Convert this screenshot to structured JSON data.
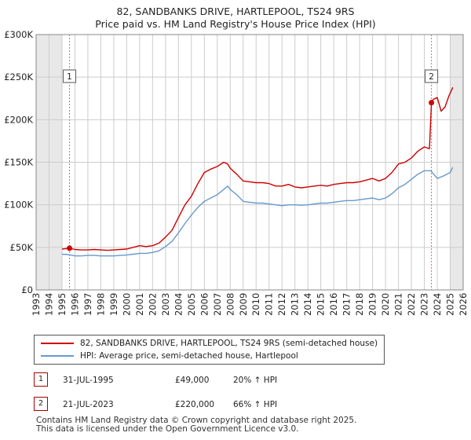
{
  "title_line1": "82, SANDBANKS DRIVE, HARTLEPOOL, TS24 9RS",
  "title_line2": "Price paid vs. HM Land Registry's House Price Index (HPI)",
  "colors": {
    "property": "#cc0000",
    "hpi": "#6699cc",
    "grid": "#cccccc",
    "shade": "#e8e8e8",
    "marker_line": "#e06666"
  },
  "legend": {
    "property_label": "82, SANDBANKS DRIVE, HARTLEPOOL, TS24 9RS (semi-detached house)",
    "hpi_label": "HPI: Average price, semi-detached house, Hartlepool"
  },
  "transactions": [
    {
      "badge": "1",
      "date": "31-JUL-1995",
      "price": "£49,000",
      "hpi": "20% ↑ HPI"
    },
    {
      "badge": "2",
      "date": "21-JUL-2023",
      "price": "£220,000",
      "hpi": "66% ↑ HPI"
    }
  ],
  "footer_line1": "Contains HM Land Registry data © Crown copyright and database right 2025.",
  "footer_line2": "This data is licensed under the Open Government Licence v3.0.",
  "chart_data": {
    "type": "line",
    "title": "82, SANDBANKS DRIVE, HARTLEPOOL, TS24 9RS — Price paid vs. HM Land Registry's House Price Index (HPI)",
    "xlim": [
      1993,
      2026
    ],
    "ylim": [
      0,
      300000
    ],
    "x_ticks": [
      1993,
      1994,
      1995,
      1996,
      1997,
      1998,
      1999,
      2000,
      2001,
      2002,
      2003,
      2004,
      2005,
      2006,
      2007,
      2008,
      2009,
      2010,
      2011,
      2012,
      2013,
      2014,
      2015,
      2016,
      2017,
      2018,
      2019,
      2020,
      2021,
      2022,
      2023,
      2024,
      2025,
      2026
    ],
    "y_ticks": [
      0,
      50000,
      100000,
      150000,
      200000,
      250000,
      300000
    ],
    "y_tick_labels": [
      "£0",
      "£50K",
      "£100K",
      "£150K",
      "£200K",
      "£250K",
      "£300K"
    ],
    "shaded_ranges": [
      [
        1993,
        1995.0
      ],
      [
        2025.0,
        2026
      ]
    ],
    "sales": [
      {
        "label": "1",
        "x": 1995.58,
        "y": 49000
      },
      {
        "label": "2",
        "x": 2023.55,
        "y": 220000
      }
    ],
    "series": [
      {
        "name": "82, SANDBANKS DRIVE, HARTLEPOOL, TS24 9RS (semi-detached house)",
        "color": "#cc0000",
        "x": [
          1995.0,
          1995.58,
          1996.0,
          1996.5,
          1997.0,
          1997.5,
          1998.0,
          1998.5,
          1999.0,
          1999.5,
          2000.0,
          2000.5,
          2001.0,
          2001.5,
          2002.0,
          2002.5,
          2003.0,
          2003.5,
          2004.0,
          2004.5,
          2005.0,
          2005.5,
          2006.0,
          2006.5,
          2007.0,
          2007.5,
          2007.8,
          2008.0,
          2008.5,
          2009.0,
          2009.5,
          2010.0,
          2010.5,
          2011.0,
          2011.5,
          2012.0,
          2012.5,
          2013.0,
          2013.5,
          2014.0,
          2014.5,
          2015.0,
          2015.5,
          2016.0,
          2016.5,
          2017.0,
          2017.5,
          2018.0,
          2018.5,
          2019.0,
          2019.5,
          2020.0,
          2020.5,
          2021.0,
          2021.5,
          2022.0,
          2022.5,
          2023.0,
          2023.4,
          2023.55,
          2023.7,
          2024.0,
          2024.3,
          2024.6,
          2024.9,
          2025.2
        ],
        "values": [
          48000,
          49000,
          47500,
          47000,
          47000,
          47500,
          47000,
          46500,
          47000,
          47500,
          48000,
          50000,
          52000,
          51000,
          52000,
          55000,
          62000,
          70000,
          85000,
          100000,
          110000,
          125000,
          138000,
          142000,
          145000,
          150000,
          148000,
          143000,
          136000,
          128000,
          127000,
          126000,
          126000,
          125000,
          122000,
          122000,
          124000,
          121000,
          120000,
          121000,
          122000,
          123000,
          122000,
          124000,
          125000,
          126000,
          126000,
          127000,
          129000,
          131000,
          128000,
          131000,
          138000,
          148000,
          150000,
          155000,
          163000,
          168000,
          166000,
          220000,
          224000,
          226000,
          210000,
          215000,
          228000,
          238000
        ]
      },
      {
        "name": "HPI: Average price, semi-detached house, Hartlepool",
        "color": "#6699cc",
        "x": [
          1995.0,
          1995.5,
          1996.0,
          1996.5,
          1997.0,
          1997.5,
          1998.0,
          1998.5,
          1999.0,
          1999.5,
          2000.0,
          2000.5,
          2001.0,
          2001.5,
          2002.0,
          2002.5,
          2003.0,
          2003.5,
          2004.0,
          2004.5,
          2005.0,
          2005.5,
          2006.0,
          2006.5,
          2007.0,
          2007.5,
          2007.8,
          2008.0,
          2008.5,
          2009.0,
          2009.5,
          2010.0,
          2010.5,
          2011.0,
          2011.5,
          2012.0,
          2012.5,
          2013.0,
          2013.5,
          2014.0,
          2014.5,
          2015.0,
          2015.5,
          2016.0,
          2016.5,
          2017.0,
          2017.5,
          2018.0,
          2018.5,
          2019.0,
          2019.5,
          2020.0,
          2020.5,
          2021.0,
          2021.5,
          2022.0,
          2022.5,
          2023.0,
          2023.5,
          2024.0,
          2024.5,
          2025.0,
          2025.2
        ],
        "values": [
          42000,
          41500,
          40000,
          40000,
          40500,
          40500,
          40000,
          40000,
          40000,
          40500,
          41000,
          42000,
          43000,
          43000,
          44000,
          46000,
          51000,
          57000,
          67000,
          78000,
          88000,
          97000,
          104000,
          108000,
          112000,
          118000,
          122000,
          118000,
          112000,
          104000,
          103000,
          102000,
          102000,
          101000,
          100000,
          99000,
          100000,
          100000,
          99500,
          100000,
          101000,
          102000,
          102000,
          103000,
          104000,
          105000,
          105000,
          106000,
          107000,
          108000,
          106000,
          108000,
          113000,
          120000,
          124000,
          130000,
          136000,
          140000,
          140000,
          131000,
          134000,
          138000,
          144000
        ]
      }
    ]
  }
}
